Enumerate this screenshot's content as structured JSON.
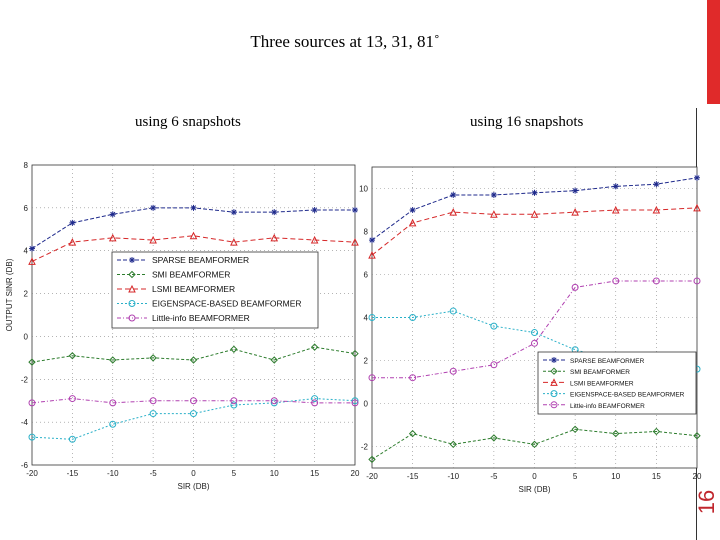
{
  "slide": {
    "title": "Three sources at 13, 31, 81˚",
    "subtitle_left": "using 6 snapshots",
    "subtitle_right": "using 16 snapshots",
    "page_number": "16",
    "accent_color": "#e02a2a"
  },
  "chart_data": [
    {
      "type": "line",
      "subtitle": "using 6 snapshots",
      "xlabel": "SIR (DB)",
      "ylabel": "OUTPUT SINR (DB)",
      "x": [
        -20,
        -15,
        -10,
        -5,
        0,
        5,
        10,
        15,
        20
      ],
      "x_tick_labels": [
        "-20",
        "-15",
        "-10",
        "-5",
        "0",
        "5",
        "10",
        "15",
        "20"
      ],
      "xlim": [
        -20,
        20
      ],
      "ylim": [
        -6,
        8
      ],
      "y_ticks": [
        -6,
        -4,
        -2,
        0,
        2,
        4,
        6,
        8
      ],
      "y_tick_labels": [
        "-6",
        "-4",
        "-2",
        "0",
        "2",
        "4",
        "6",
        "8"
      ],
      "grid": true,
      "legend_position": "center-right",
      "series": [
        {
          "name": "SPARSE BEAMFORMER",
          "color": "#1f2a8c",
          "marker": "*",
          "values": [
            4.1,
            5.3,
            5.7,
            6.0,
            6.0,
            5.8,
            5.8,
            5.9,
            5.9
          ]
        },
        {
          "name": "SMI BEAMFORMER",
          "color": "#2e7d2e",
          "marker": "diamond",
          "values": [
            -1.2,
            -0.9,
            -1.1,
            -1.0,
            -1.1,
            -0.6,
            -1.1,
            -0.5,
            -0.8
          ]
        },
        {
          "name": "LSMI BEAMFORMER",
          "color": "#d62728",
          "marker": "triangle",
          "values": [
            3.5,
            4.4,
            4.6,
            4.5,
            4.7,
            4.4,
            4.6,
            4.5,
            4.4
          ]
        },
        {
          "name": "EIGENSPACE-BASED BEAMFORMER",
          "color": "#2ab0c8",
          "marker": "circle",
          "values": [
            -4.7,
            -4.8,
            -4.1,
            -3.6,
            -3.6,
            -3.2,
            -3.1,
            -2.9,
            -3.0
          ]
        },
        {
          "name": "Little-info BEAMFORMER",
          "color": "#b040b0",
          "marker": "circle",
          "values": [
            -3.1,
            -2.9,
            -3.1,
            -3.0,
            -3.0,
            -3.0,
            -3.0,
            -3.1,
            -3.1
          ]
        }
      ]
    },
    {
      "type": "line",
      "subtitle": "using 16 snapshots",
      "xlabel": "SIR (DB)",
      "ylabel": "",
      "x": [
        -20,
        -15,
        -10,
        -5,
        0,
        5,
        10,
        15,
        20
      ],
      "x_tick_labels": [
        "-20",
        "-15",
        "-10",
        "-5",
        "0",
        "5",
        "10",
        "15",
        "20"
      ],
      "xlim": [
        -20,
        20
      ],
      "ylim": [
        -3,
        11
      ],
      "y_ticks": [
        -2,
        0,
        2,
        4,
        6,
        8,
        10
      ],
      "y_tick_labels": [
        "-2",
        "0",
        "2",
        "4",
        "6",
        "8",
        "10"
      ],
      "grid": true,
      "legend_position": "bottom-right",
      "series": [
        {
          "name": "SPARSE BEAMFORMER",
          "color": "#1f2a8c",
          "marker": "*",
          "values": [
            7.6,
            9.0,
            9.7,
            9.7,
            9.8,
            9.9,
            10.1,
            10.2,
            10.5
          ]
        },
        {
          "name": "SMI BEAMFORMER",
          "color": "#2e7d2e",
          "marker": "diamond",
          "values": [
            -2.6,
            -1.4,
            -1.9,
            -1.6,
            -1.9,
            -1.2,
            -1.4,
            -1.3,
            -1.5
          ]
        },
        {
          "name": "LSMI BEAMFORMER",
          "color": "#d62728",
          "marker": "triangle",
          "values": [
            6.9,
            8.4,
            8.9,
            8.8,
            8.8,
            8.9,
            9.0,
            9.0,
            9.1
          ]
        },
        {
          "name": "EIGENSPACE-BASED BEAMFORMER",
          "color": "#2ab0c8",
          "marker": "circle",
          "values": [
            4.0,
            4.0,
            4.3,
            3.6,
            3.3,
            2.5,
            2.0,
            1.8,
            1.6
          ]
        },
        {
          "name": "Little-info BEAMFORMER",
          "color": "#b040b0",
          "marker": "circle",
          "values": [
            1.2,
            1.2,
            1.5,
            1.8,
            2.8,
            5.4,
            5.7,
            5.7,
            5.7
          ]
        }
      ]
    }
  ]
}
